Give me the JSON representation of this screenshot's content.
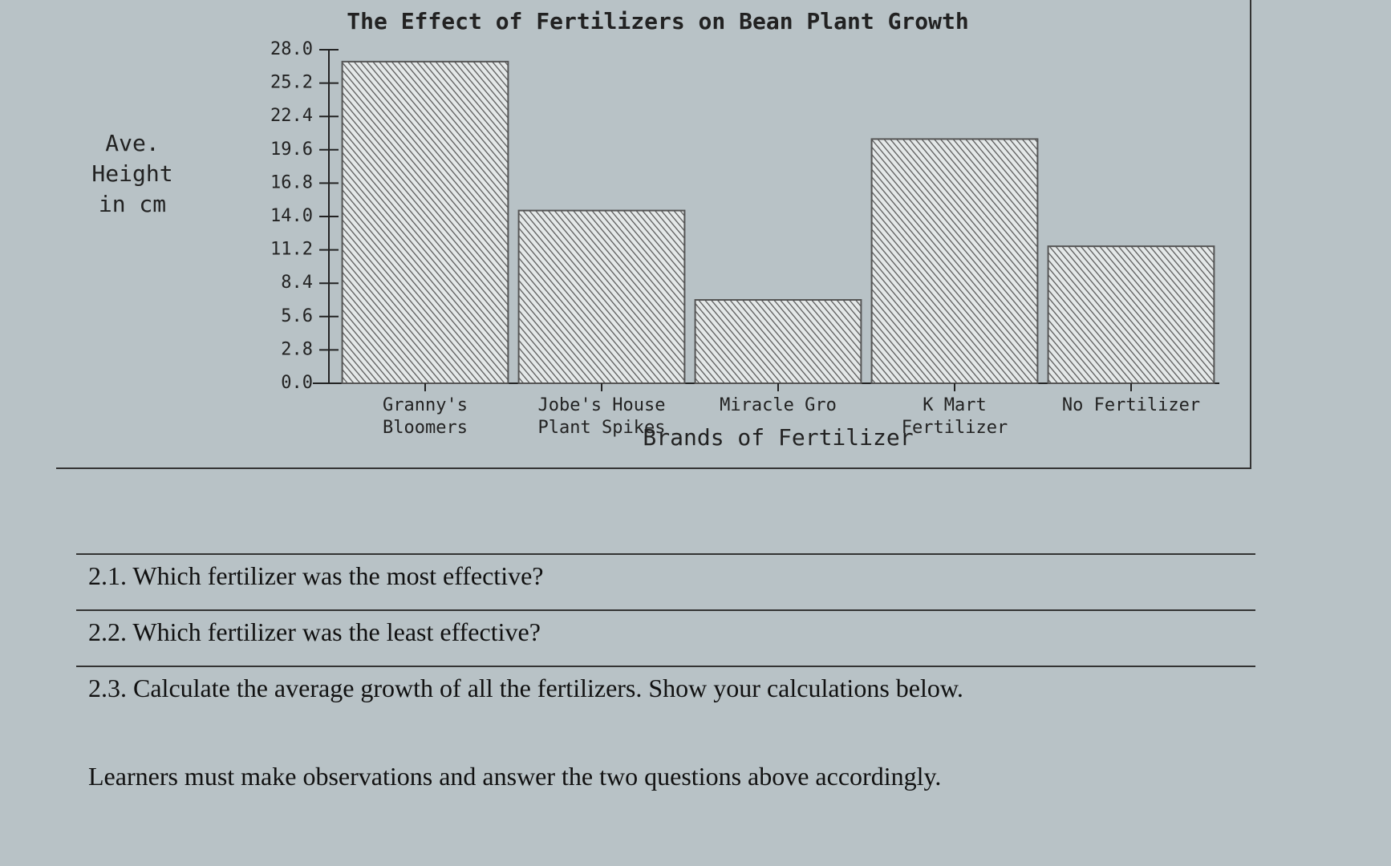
{
  "chart_data": {
    "type": "bar",
    "title": "The Effect of Fertilizers on Bean Plant Growth",
    "y_label": "Ave. Height in cm",
    "x_label": "Brands of Fertilizer",
    "categories": [
      "Granny's Bloomers",
      "Jobe's House Plant Spikes",
      "Miracle Gro",
      "K Mart Fertilizer",
      "No Fertilizer"
    ],
    "values": [
      27,
      14.5,
      7,
      20.5,
      11.5
    ],
    "color": "#555555",
    "ylim": [
      0,
      28
    ],
    "yticks": [
      {
        "value": 0,
        "label": "0.0"
      },
      2.8,
      5.6,
      8.4,
      11.2,
      {
        "value": 14,
        "label": "14.0"
      },
      16.8,
      19.6,
      22.4,
      25.2,
      {
        "value": 28,
        "label": "28.0"
      }
    ],
    "grid": false
  },
  "questions": [
    "2.1. Which fertilizer was the most effective?",
    "2.2. Which fertilizer was the least effective?",
    "2.3. Calculate the average growth of all the fertilizers. Show your calculations below."
  ],
  "note": "Learners must make observations and answer the two questions above accordingly."
}
